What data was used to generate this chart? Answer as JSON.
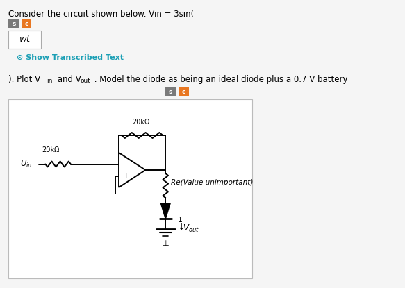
{
  "bg_color": "#f5f5f5",
  "box_bg": "#ffffff",
  "text_color": "#000000",
  "line1": "Consider the circuit shown below. Vin = 3sin(",
  "show_transcribed_text": "Show Transcribed Text",
  "show_transcribed_color": "#1a9fb5",
  "btn1_color": "#7a7a7a",
  "btn2_color": "#e87722",
  "btn_label1": "s",
  "btn_label2": "c",
  "wt_box_text": "wt",
  "circuit_border": "#cccccc",
  "font_size_main": 8.5,
  "font_size_small": 7.5,
  "font_size_circuit": 7.5
}
